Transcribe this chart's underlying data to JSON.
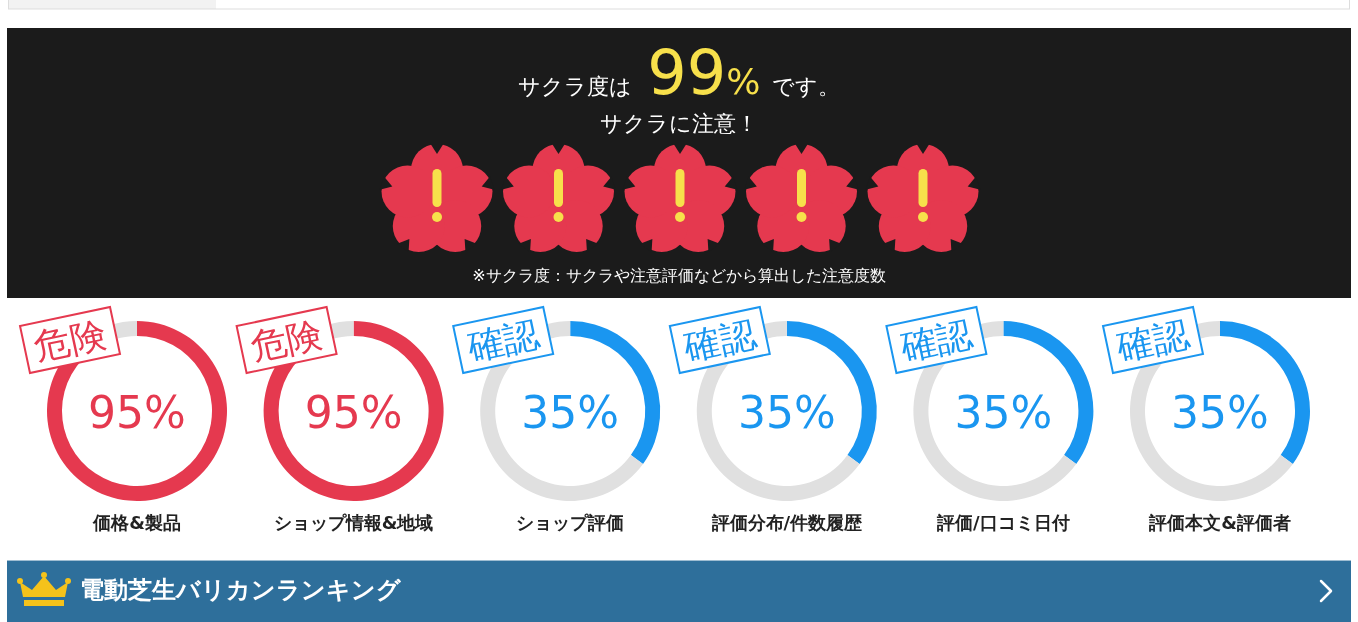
{
  "chart_data": [
    {
      "type": "other",
      "title": "サクラ度は 99% です。",
      "subtitle": "サクラに注意！",
      "annotations": [
        "※サクラ度：サクラや注意評価などから算出した注意度数"
      ]
    },
    {
      "type": "donut",
      "title": "価格&製品",
      "subtitle": "危険",
      "categories": [
        null,
        null
      ],
      "values": [
        95,
        5
      ],
      "colors": [
        "#e5394f",
        "#e0e0e0"
      ],
      "annotations": [
        "95%"
      ]
    },
    {
      "type": "donut",
      "title": "ショップ情報&地域",
      "subtitle": "危険",
      "categories": [
        null,
        null
      ],
      "values": [
        95,
        5
      ],
      "colors": [
        "#e5394f",
        "#e0e0e0"
      ],
      "annotations": [
        "95%"
      ]
    },
    {
      "type": "donut",
      "title": "ショップ評価",
      "subtitle": "確認",
      "categories": [
        null,
        null
      ],
      "values": [
        35,
        65
      ],
      "colors": [
        "#1a96f0",
        "#e0e0e0"
      ],
      "annotations": [
        "35%"
      ]
    },
    {
      "type": "donut",
      "title": "評価分布/件数履歴",
      "subtitle": "確認",
      "categories": [
        null,
        null
      ],
      "values": [
        35,
        65
      ],
      "colors": [
        "#1a96f0",
        "#e0e0e0"
      ],
      "annotations": [
        "35%"
      ]
    },
    {
      "type": "donut",
      "title": "評価/口コミ日付",
      "subtitle": "確認",
      "categories": [
        null,
        null
      ],
      "values": [
        35,
        65
      ],
      "colors": [
        "#1a96f0",
        "#e0e0e0"
      ],
      "annotations": [
        "35%"
      ]
    },
    {
      "type": "donut",
      "title": "評価本文&評価者",
      "subtitle": "確認",
      "categories": [
        null,
        null
      ],
      "values": [
        35,
        65
      ],
      "colors": [
        "#1a96f0",
        "#e0e0e0"
      ],
      "annotations": [
        "35%"
      ]
    },
    {
      "type": "other",
      "title": "電動芝生バリカンランキング"
    }
  ]
}
